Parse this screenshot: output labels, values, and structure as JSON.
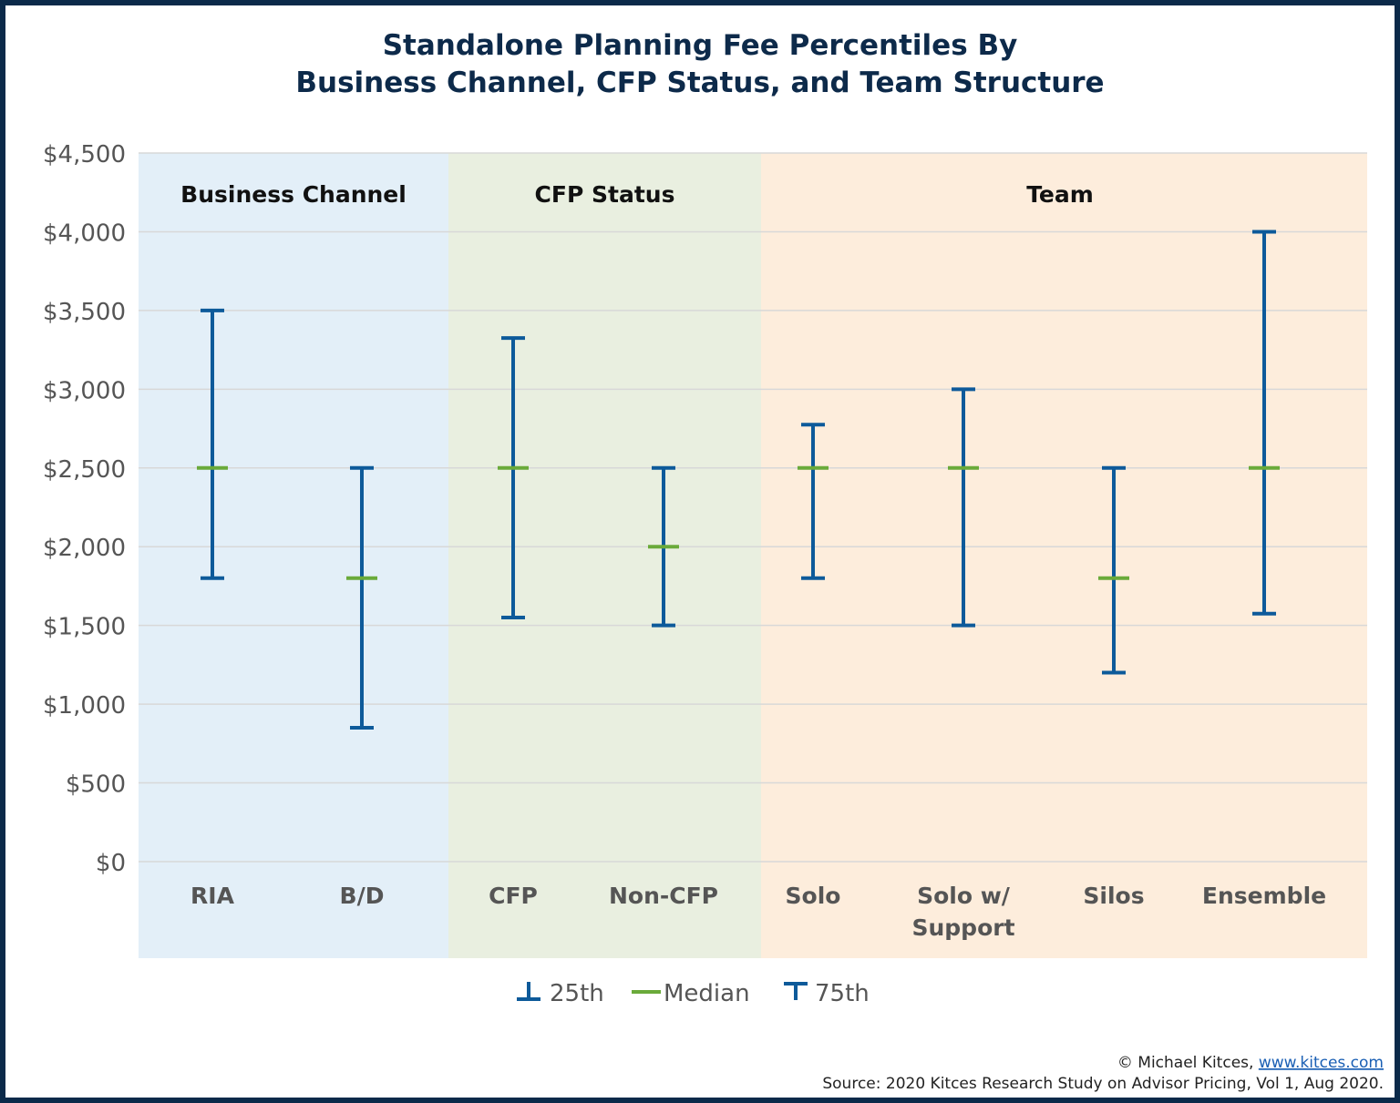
{
  "chart_data": {
    "type": "error-bar",
    "title": [
      "Standalone Planning Fee Percentiles By",
      "Business Channel, CFP Status, and Team Structure"
    ],
    "xlabel": "",
    "ylabel": "",
    "ylim": [
      0,
      4500
    ],
    "yticks": [
      0,
      500,
      1000,
      1500,
      2000,
      2500,
      3000,
      3500,
      4000,
      4500
    ],
    "ytick_labels": [
      "$0",
      "$500",
      "$1,000",
      "$1,500",
      "$2,000",
      "$2,500",
      "$3,000",
      "$3,500",
      "$4,000",
      "$4,500"
    ],
    "grid": true,
    "groups": [
      {
        "label": "Business Channel",
        "color": "#e3eff8",
        "categories": [
          0,
          1
        ]
      },
      {
        "label": "CFP Status",
        "color": "#e9efe0",
        "categories": [
          2,
          3
        ]
      },
      {
        "label": "Team",
        "color": "#fdeddc",
        "categories": [
          4,
          5,
          6,
          7
        ]
      }
    ],
    "categories": [
      [
        "RIA"
      ],
      [
        "B/D"
      ],
      [
        "CFP"
      ],
      [
        "Non-CFP"
      ],
      [
        "Solo"
      ],
      [
        "Solo w/",
        "Support"
      ],
      [
        "Silos"
      ],
      [
        "Ensemble"
      ]
    ],
    "series": [
      {
        "name": "25th",
        "color": "#0d5a9a",
        "values": [
          1800,
          850,
          1550,
          1500,
          1800,
          1500,
          1200,
          1575
        ]
      },
      {
        "name": "Median",
        "color": "#6aaa3a",
        "values": [
          2500,
          1800,
          2500,
          2000,
          2500,
          2500,
          1800,
          2500
        ]
      },
      {
        "name": "75th",
        "color": "#0d5a9a",
        "values": [
          3500,
          2500,
          3325,
          2500,
          2775,
          3000,
          2500,
          4000
        ]
      }
    ],
    "legend_position": "bottom"
  },
  "footer": {
    "copyright": "© Michael Kitces, ",
    "link": "www.kitces.com",
    "source": "Source: 2020 Kitces Research Study on Advisor Pricing, Vol 1, Aug 2020."
  }
}
